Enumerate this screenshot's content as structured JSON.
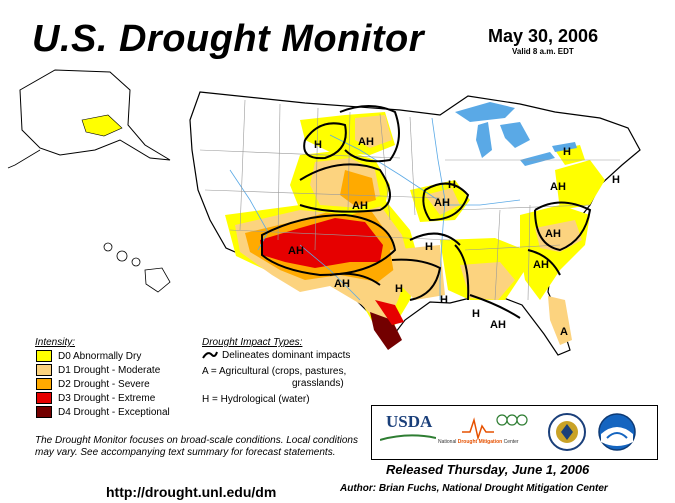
{
  "header": {
    "title": "U.S. Drought Monitor",
    "date": "May 30, 2006",
    "valid": "Valid 8 a.m. EDT"
  },
  "legend": {
    "intensity_title": "Intensity:",
    "items": [
      {
        "label": "D0 Abnormally Dry",
        "color": "#ffff00"
      },
      {
        "label": "D1 Drought - Moderate",
        "color": "#fcd37f"
      },
      {
        "label": "D2 Drought - Severe",
        "color": "#ffaa00"
      },
      {
        "label": "D3 Drought - Extreme",
        "color": "#e60000"
      },
      {
        "label": "D4 Drought - Exceptional",
        "color": "#730000"
      }
    ],
    "impact_title": "Drought Impact Types:",
    "impact_line": "Delineates dominant impacts",
    "impact_a": "A = Agricultural (crops, pastures,",
    "impact_a2": "grasslands)",
    "impact_h": "H = Hydrological (water)"
  },
  "map_labels": [
    {
      "text": "AH"
    },
    {
      "text": "H"
    },
    {
      "text": "AH"
    },
    {
      "text": "AH"
    },
    {
      "text": "AH"
    },
    {
      "text": "AH"
    },
    {
      "text": "H"
    },
    {
      "text": "H"
    },
    {
      "text": "AH"
    },
    {
      "text": "H"
    },
    {
      "text": "H"
    },
    {
      "text": "AH"
    },
    {
      "text": "H"
    },
    {
      "text": "AH"
    },
    {
      "text": "A"
    },
    {
      "text": "H"
    },
    {
      "text": "AH"
    },
    {
      "text": "H"
    }
  ],
  "note": "The Drought Monitor focuses on broad-scale conditions. Local conditions may vary. See accompanying text summary for forecast statements.",
  "url": "http://drought.unl.edu/dm",
  "released": "Released Thursday, June 1, 2006",
  "author": "Author:  Brian Fuchs, National Drought Mitigation Center",
  "logos": {
    "usda": "USDA",
    "ndmc_prefix": "National",
    "ndmc_highlight": "Drought Mitigation",
    "ndmc_suffix": "Center"
  },
  "colors": {
    "land": "#ffffff",
    "water": "#5aa9e6",
    "border": "#000000",
    "state_line": "#9a9a9a"
  }
}
